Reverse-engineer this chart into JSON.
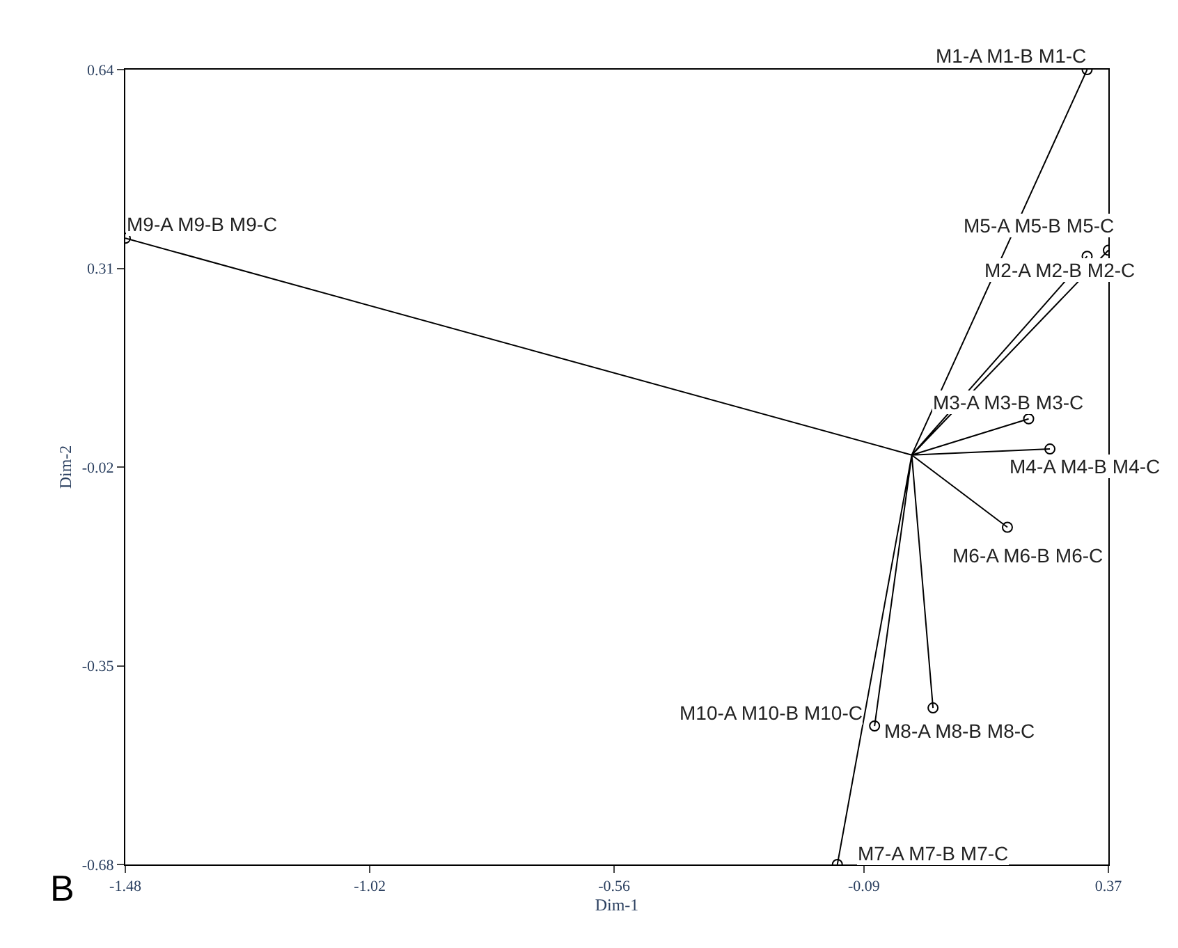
{
  "chart_data": {
    "type": "line",
    "xlabel": "Dim-1",
    "ylabel": "Dim-2",
    "xlim": [
      -1.48,
      0.37
    ],
    "xticks": [
      -1.48,
      -1.02,
      -0.56,
      -0.09,
      0.37
    ],
    "ylim": [
      -0.68,
      0.64
    ],
    "yticks": [
      0.64,
      0.31,
      -0.02,
      -0.35,
      -0.68
    ],
    "line_style": "solid",
    "marker": "none",
    "series": [
      {
        "color": "#000000",
        "x": [
          0.33,
          0,
          0.37,
          0,
          0.22,
          0,
          0.26,
          0,
          0.33,
          0,
          0.18,
          0,
          -0.14,
          0,
          0.04,
          0,
          -1.48,
          0,
          -0.07
        ],
        "values": [
          0.64,
          0,
          0.34,
          0,
          0.06,
          0,
          0.01,
          0,
          0.33,
          0,
          -0.12,
          0,
          -0.68,
          0,
          -0.42,
          0,
          0.36,
          0,
          -0.45
        ]
      },
      {
        "type": "scatter",
        "marker": "circle",
        "color": "#000000",
        "x": [
          0.33,
          0.37,
          0.22,
          0.26,
          0.33,
          0.18,
          -0.14,
          0.04,
          -1.48,
          -0.07
        ],
        "values": [
          0.64,
          0.34,
          0.06,
          0.01,
          0.33,
          -0.12,
          -0.68,
          -0.42,
          0.36,
          -0.45
        ]
      }
    ],
    "annotations": [
      {
        "text": "M1-A M1-B M1-C",
        "x": 0.33,
        "y": 0.64
      },
      {
        "text": "M2-A M2-B M2-C",
        "x": 0.37,
        "y": 0.34
      },
      {
        "text": "M3-A M3-B M3-C",
        "x": 0.22,
        "y": 0.06
      },
      {
        "text": "M4-A M4-B M4-C",
        "x": 0.26,
        "y": 0.01
      },
      {
        "text": "M5-A M5-B M5-C",
        "x": 0.33,
        "y": 0.33
      },
      {
        "text": "M6-A M6-B M6-C",
        "x": 0.18,
        "y": -0.12
      },
      {
        "text": "M7-A M7-B M7-C",
        "x": -0.14,
        "y": -0.68
      },
      {
        "text": "M8-A M8-B M8-C",
        "x": 0.04,
        "y": -0.42
      },
      {
        "text": "M9-A M9-B M9-C",
        "x": -1.48,
        "y": 0.36
      },
      {
        "text": "M10-A M10-B M10-C",
        "x": -0.07,
        "y": -0.45
      },
      "B"
    ]
  }
}
